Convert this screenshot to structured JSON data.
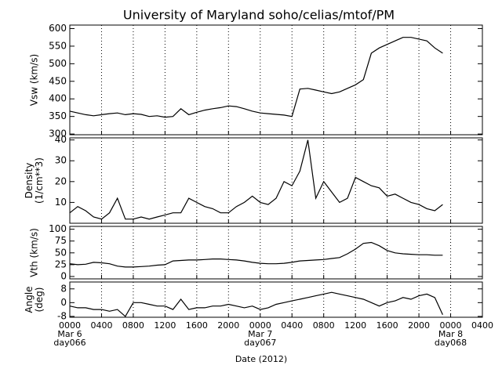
{
  "title": "University of Maryland  soho/celias/mtof/PM",
  "x_axis": {
    "label": "Date (2012)",
    "xlim": [
      0,
      52
    ],
    "xticks": [
      {
        "value": 0,
        "label": "0000"
      },
      {
        "value": 4,
        "label": "0400"
      },
      {
        "value": 8,
        "label": "0800"
      },
      {
        "value": 12,
        "label": "1200"
      },
      {
        "value": 16,
        "label": "1600"
      },
      {
        "value": 20,
        "label": "2000"
      },
      {
        "value": 24,
        "label": "0000"
      },
      {
        "value": 28,
        "label": "0400"
      },
      {
        "value": 32,
        "label": "0800"
      },
      {
        "value": 36,
        "label": "1200"
      },
      {
        "value": 40,
        "label": "1600"
      },
      {
        "value": 44,
        "label": "2000"
      },
      {
        "value": 48,
        "label": "0000"
      },
      {
        "value": 52,
        "label": "0400"
      }
    ],
    "date_marks": [
      {
        "value": 0,
        "date": "Mar 6",
        "day": "day066"
      },
      {
        "value": 24,
        "date": "Mar 7",
        "day": "day067"
      },
      {
        "value": 48,
        "date": "Mar 8",
        "day": "day068"
      }
    ],
    "x": [
      0,
      1,
      2,
      3,
      4,
      5,
      6,
      7,
      8,
      9,
      10,
      11,
      12,
      13,
      14,
      15,
      16,
      17,
      18,
      19,
      20,
      21,
      22,
      23,
      24,
      25,
      26,
      27,
      28,
      29,
      30,
      31,
      32,
      33,
      34,
      35,
      36,
      37,
      38,
      39,
      40,
      41,
      42,
      43,
      44,
      45,
      46,
      47
    ]
  },
  "chart_data": [
    {
      "type": "line",
      "ylabel": [
        "Vsw (km/s)"
      ],
      "ylim": [
        298,
        610
      ],
      "yticks": [
        300,
        350,
        400,
        450,
        500,
        550,
        600
      ],
      "color": "#000000",
      "values": [
        365,
        360,
        355,
        352,
        355,
        358,
        360,
        355,
        358,
        356,
        350,
        352,
        348,
        350,
        372,
        355,
        362,
        368,
        372,
        375,
        380,
        378,
        372,
        365,
        360,
        358,
        356,
        354,
        350,
        428,
        430,
        425,
        420,
        415,
        420,
        430,
        440,
        455,
        530,
        545,
        555,
        565,
        575,
        575,
        570,
        565,
        545,
        530
      ]
    },
    {
      "type": "line",
      "ylabel": [
        "Density",
        "(1/cm**3)"
      ],
      "ylim": [
        0,
        41
      ],
      "yticks": [
        10,
        20,
        30,
        40
      ],
      "color": "#000000",
      "values": [
        5,
        8,
        6,
        3,
        2,
        5,
        12,
        2,
        2,
        3,
        2,
        3,
        4,
        5,
        5,
        12,
        10,
        8,
        7,
        5,
        5,
        8,
        10,
        13,
        10,
        9,
        12,
        20,
        18,
        25,
        40,
        12,
        20,
        15,
        10,
        12,
        22,
        20,
        18,
        17,
        13,
        14,
        12,
        10,
        9,
        7,
        6,
        9
      ]
    },
    {
      "type": "line",
      "ylabel": [
        "Vth (km/s)"
      ],
      "ylim": [
        -5,
        106
      ],
      "yticks": [
        0,
        25,
        50,
        75,
        100
      ],
      "color": "#000000",
      "values": [
        27,
        25,
        26,
        30,
        29,
        27,
        22,
        20,
        20,
        21,
        22,
        24,
        25,
        33,
        34,
        35,
        35,
        36,
        37,
        37,
        36,
        35,
        33,
        30,
        28,
        27,
        27,
        28,
        30,
        33,
        34,
        35,
        36,
        38,
        40,
        48,
        58,
        70,
        72,
        65,
        55,
        50,
        48,
        47,
        46,
        46,
        45,
        45
      ]
    },
    {
      "type": "line",
      "ylabel": [
        "Angle",
        "(deg)"
      ],
      "ylim": [
        -8.5,
        12
      ],
      "yticks": [
        -8,
        0,
        8
      ],
      "color": "#000000",
      "values": [
        -2,
        -3,
        -3,
        -4,
        -4,
        -5,
        -4,
        -8,
        0,
        0,
        -1,
        -2,
        -2,
        -4,
        2,
        -4,
        -3,
        -3,
        -2,
        -2,
        -1,
        -2,
        -3,
        -2,
        -4,
        -3,
        -1,
        0,
        1,
        2,
        3,
        4,
        5,
        6,
        5,
        4,
        3,
        2,
        0,
        -2,
        0,
        1,
        3,
        2,
        4,
        5,
        3,
        -7
      ]
    }
  ]
}
